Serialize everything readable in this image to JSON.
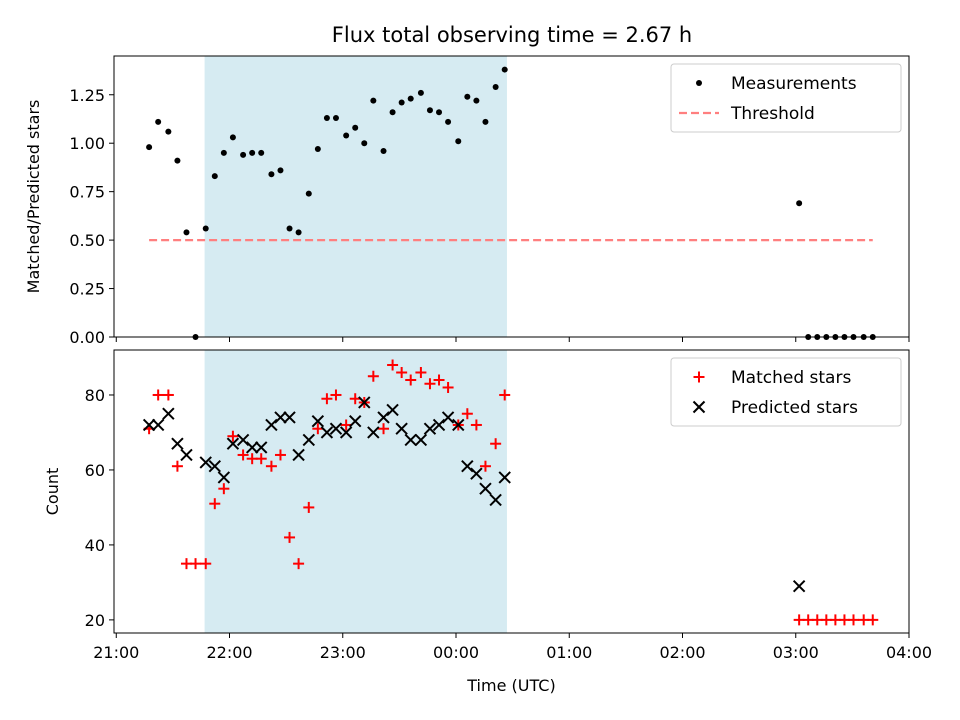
{
  "chart_data": {
    "type": "scatter",
    "title": "Flux total observing time = 2.67 h",
    "xlabel": "Time (UTC)",
    "x_unit": "hours since 21:00 UTC",
    "xlim": [
      -0.02,
      7.0
    ],
    "xticks": [
      {
        "value": 0,
        "label": "21:00"
      },
      {
        "value": 1,
        "label": "22:00"
      },
      {
        "value": 2,
        "label": "23:00"
      },
      {
        "value": 3,
        "label": "00:00"
      },
      {
        "value": 4,
        "label": "01:00"
      },
      {
        "value": 5,
        "label": "02:00"
      },
      {
        "value": 6,
        "label": "03:00"
      },
      {
        "value": 7,
        "label": "04:00"
      }
    ],
    "highlight_span": {
      "x0": 0.78,
      "x1": 3.45,
      "color": "#add8e6"
    },
    "top": {
      "ylabel": "Matched/Predicted stars",
      "ylim": [
        0,
        1.45
      ],
      "yticks": [
        {
          "value": 0,
          "label": "0.00"
        },
        {
          "value": 0.25,
          "label": "0.25"
        },
        {
          "value": 0.5,
          "label": "0.50"
        },
        {
          "value": 0.75,
          "label": "0.75"
        },
        {
          "value": 1.0,
          "label": "1.00"
        },
        {
          "value": 1.25,
          "label": "1.25"
        }
      ],
      "legend": [
        {
          "name": "Measurements",
          "marker": "dot",
          "color": "#000000"
        },
        {
          "name": "Threshold",
          "marker": "dashed-line",
          "color": "#ff7f7f"
        }
      ],
      "measurements": {
        "x": [
          0.29,
          0.37,
          0.46,
          0.54,
          0.62,
          0.7,
          0.79,
          0.87,
          0.95,
          1.03,
          1.12,
          1.2,
          1.28,
          1.37,
          1.45,
          1.53,
          1.61,
          1.7,
          1.78,
          1.86,
          1.94,
          2.03,
          2.11,
          2.19,
          2.27,
          2.36,
          2.44,
          2.52,
          2.6,
          2.69,
          2.77,
          2.85,
          2.93,
          3.02,
          3.1,
          3.18,
          3.26,
          3.35,
          3.43,
          6.03,
          6.11,
          6.19,
          6.27,
          6.35,
          6.43,
          6.51,
          6.6,
          6.68
        ],
        "y": [
          0.98,
          1.11,
          1.06,
          0.91,
          0.54,
          0.0,
          0.56,
          0.83,
          0.95,
          1.03,
          0.94,
          0.95,
          0.95,
          0.84,
          0.86,
          0.56,
          0.54,
          0.74,
          0.97,
          1.13,
          1.13,
          1.04,
          1.08,
          1.0,
          1.22,
          0.96,
          1.16,
          1.21,
          1.23,
          1.26,
          1.17,
          1.16,
          1.11,
          1.01,
          1.24,
          1.22,
          1.11,
          1.29,
          1.38,
          0.69,
          0.0,
          0.0,
          0.0,
          0.0,
          0.0,
          0.0,
          0.0,
          0.0
        ]
      },
      "threshold": {
        "x": [
          0.29,
          6.68
        ],
        "y": 0.5
      }
    },
    "bottom": {
      "ylabel": "Count",
      "ylim": [
        16.5,
        92
      ],
      "yticks": [
        {
          "value": 20,
          "label": "20"
        },
        {
          "value": 40,
          "label": "40"
        },
        {
          "value": 60,
          "label": "60"
        },
        {
          "value": 80,
          "label": "80"
        }
      ],
      "legend": [
        {
          "name": "Matched stars",
          "marker": "plus",
          "color": "#ff0000"
        },
        {
          "name": "Predicted stars",
          "marker": "x",
          "color": "#000000"
        }
      ],
      "matched": {
        "x": [
          0.29,
          0.37,
          0.46,
          0.54,
          0.62,
          0.7,
          0.79,
          0.87,
          0.95,
          1.03,
          1.12,
          1.2,
          1.28,
          1.37,
          1.45,
          1.53,
          1.61,
          1.7,
          1.78,
          1.86,
          1.94,
          2.03,
          2.11,
          2.19,
          2.27,
          2.36,
          2.44,
          2.52,
          2.6,
          2.69,
          2.77,
          2.85,
          2.93,
          3.02,
          3.1,
          3.18,
          3.26,
          3.35,
          3.43,
          6.03,
          6.11,
          6.19,
          6.27,
          6.35,
          6.43,
          6.51,
          6.6,
          6.68
        ],
        "y": [
          71,
          80,
          80,
          61,
          35,
          35,
          35,
          51,
          55,
          69,
          64,
          63,
          63,
          61,
          64,
          42,
          35,
          50,
          71,
          79,
          80,
          72,
          79,
          78,
          85,
          71,
          88,
          86,
          84,
          86,
          83,
          84,
          82,
          72,
          75,
          72,
          61,
          67,
          80,
          20,
          20,
          20,
          20,
          20,
          20,
          20,
          20,
          20
        ]
      },
      "predicted": {
        "x": [
          0.29,
          0.37,
          0.46,
          0.54,
          0.62,
          0.79,
          0.87,
          0.95,
          1.03,
          1.12,
          1.2,
          1.28,
          1.37,
          1.45,
          1.53,
          1.61,
          1.7,
          1.78,
          1.86,
          1.94,
          2.03,
          2.11,
          2.19,
          2.27,
          2.36,
          2.44,
          2.52,
          2.6,
          2.69,
          2.77,
          2.85,
          2.93,
          3.02,
          3.1,
          3.18,
          3.26,
          3.35,
          3.43,
          6.03
        ],
        "y": [
          72,
          72,
          75,
          67,
          64,
          62,
          61,
          58,
          67,
          68,
          66,
          66,
          72,
          74,
          74,
          64,
          68,
          73,
          70,
          71,
          70,
          73,
          78,
          70,
          74,
          76,
          71,
          68,
          68,
          71,
          72,
          74,
          72,
          61,
          59,
          55,
          52,
          58,
          29
        ]
      }
    }
  }
}
